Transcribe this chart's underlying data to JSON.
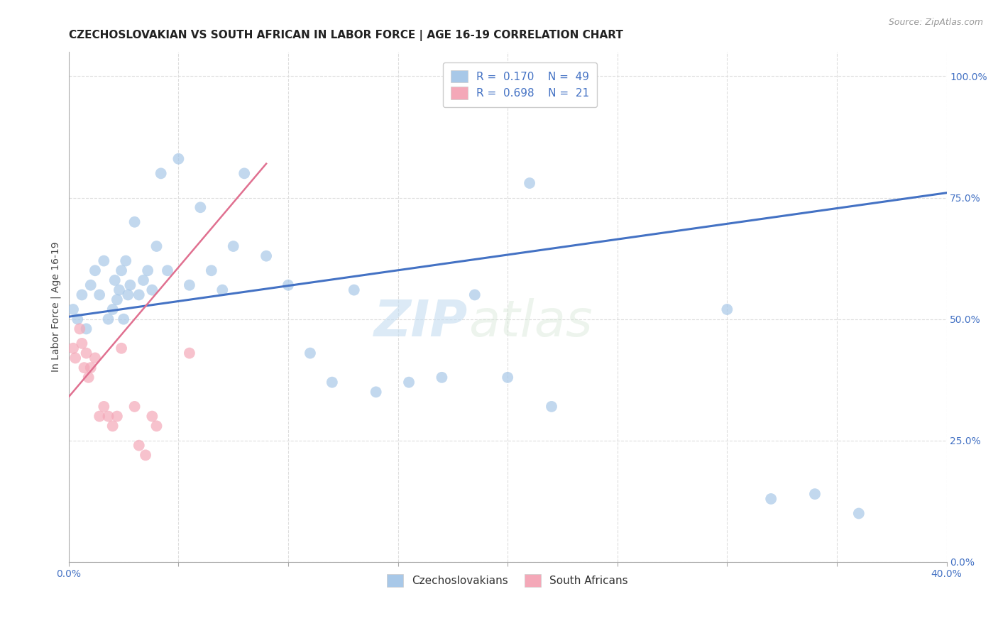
{
  "title": "CZECHOSLOVAKIAN VS SOUTH AFRICAN IN LABOR FORCE | AGE 16-19 CORRELATION CHART",
  "source": "Source: ZipAtlas.com",
  "ylabel": "In Labor Force | Age 16-19",
  "xlim": [
    0.0,
    0.4
  ],
  "ylim": [
    0.0,
    1.05
  ],
  "yticks": [
    0.0,
    0.25,
    0.5,
    0.75,
    1.0
  ],
  "ytick_labels": [
    "0.0%",
    "25.0%",
    "50.0%",
    "75.0%",
    "100.0%"
  ],
  "xticks": [
    0.0,
    0.05,
    0.1,
    0.15,
    0.2,
    0.25,
    0.3,
    0.35,
    0.4
  ],
  "xlabel_shown": [
    "0.0%",
    "",
    "",
    "",
    "",
    "",
    "",
    "",
    "40.0%"
  ],
  "legend_entries": [
    {
      "label": "Czechoslovakians",
      "color": "#a8c8e8",
      "R": 0.17,
      "N": 49
    },
    {
      "label": "South Africans",
      "color": "#f4a8b8",
      "R": 0.698,
      "N": 21
    }
  ],
  "blue_scatter_x": [
    0.002,
    0.004,
    0.006,
    0.008,
    0.01,
    0.012,
    0.014,
    0.016,
    0.018,
    0.02,
    0.021,
    0.022,
    0.023,
    0.024,
    0.025,
    0.026,
    0.027,
    0.028,
    0.03,
    0.032,
    0.034,
    0.036,
    0.038,
    0.04,
    0.042,
    0.045,
    0.05,
    0.055,
    0.06,
    0.065,
    0.07,
    0.075,
    0.08,
    0.09,
    0.1,
    0.11,
    0.12,
    0.13,
    0.14,
    0.155,
    0.17,
    0.185,
    0.2,
    0.21,
    0.22,
    0.3,
    0.32,
    0.34,
    0.36
  ],
  "blue_scatter_y": [
    0.52,
    0.5,
    0.55,
    0.48,
    0.57,
    0.6,
    0.55,
    0.62,
    0.5,
    0.52,
    0.58,
    0.54,
    0.56,
    0.6,
    0.5,
    0.62,
    0.55,
    0.57,
    0.7,
    0.55,
    0.58,
    0.6,
    0.56,
    0.65,
    0.8,
    0.6,
    0.83,
    0.57,
    0.73,
    0.6,
    0.56,
    0.65,
    0.8,
    0.63,
    0.57,
    0.43,
    0.37,
    0.56,
    0.35,
    0.37,
    0.38,
    0.55,
    0.38,
    0.78,
    0.32,
    0.52,
    0.13,
    0.14,
    0.1
  ],
  "pink_scatter_x": [
    0.002,
    0.003,
    0.005,
    0.006,
    0.007,
    0.008,
    0.009,
    0.01,
    0.012,
    0.014,
    0.016,
    0.018,
    0.02,
    0.022,
    0.024,
    0.03,
    0.032,
    0.035,
    0.038,
    0.04,
    0.055
  ],
  "pink_scatter_y": [
    0.44,
    0.42,
    0.48,
    0.45,
    0.4,
    0.43,
    0.38,
    0.4,
    0.42,
    0.3,
    0.32,
    0.3,
    0.28,
    0.3,
    0.44,
    0.32,
    0.24,
    0.22,
    0.3,
    0.28,
    0.43
  ],
  "blue_line_x": [
    0.0,
    0.4
  ],
  "blue_line_y": [
    0.505,
    0.76
  ],
  "pink_line_x": [
    0.0,
    0.09
  ],
  "pink_line_y": [
    0.34,
    0.82
  ],
  "watermark_zip": "ZIP",
  "watermark_atlas": "atlas",
  "bg_color": "#ffffff",
  "grid_color": "#dddddd",
  "blue_color": "#a8c8e8",
  "pink_color": "#f4a8b8",
  "blue_line_color": "#4472c4",
  "pink_line_color": "#e07090",
  "title_fontsize": 11,
  "axis_label_fontsize": 10,
  "tick_fontsize": 10,
  "legend_fontsize": 11,
  "tick_color": "#4472c4"
}
